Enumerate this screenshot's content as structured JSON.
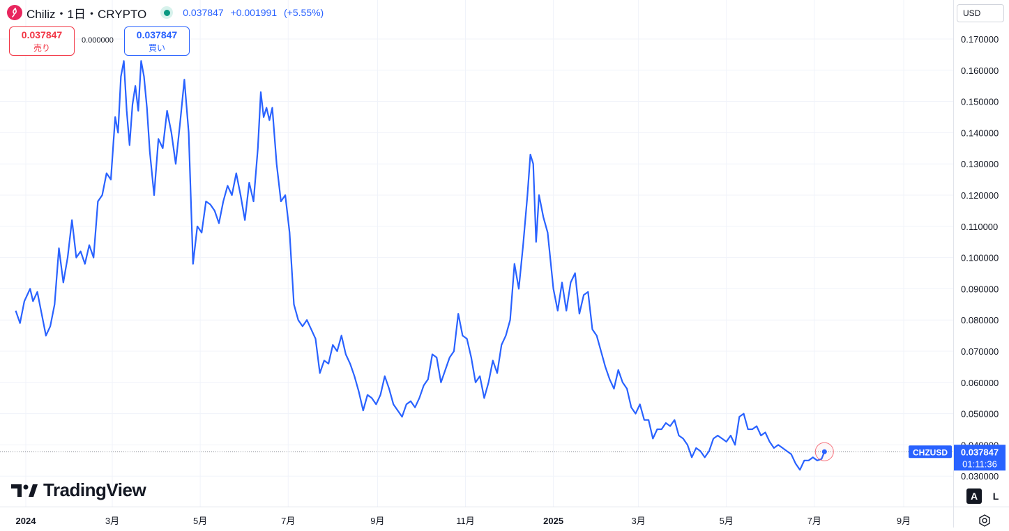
{
  "legend": {
    "symbol_title": "Chiliz・1日・CRYPTO",
    "last": "0.037847",
    "change": "+0.001991",
    "change_pct": "(+5.55%)"
  },
  "trade": {
    "sell_price": "0.037847",
    "sell_label": "売り",
    "spread": "0.000000",
    "buy_price": "0.037847",
    "buy_label": "買い"
  },
  "currency": "USD",
  "axis_buttons": {
    "auto": "A",
    "log": "L"
  },
  "logo_text": "TradingView",
  "price_label": {
    "symbol": "CHZUSD",
    "price": "0.037847",
    "countdown": "01:11:36"
  },
  "colors": {
    "line": "#2962ff",
    "grid": "#f0f3fa",
    "sell": "#f23645",
    "buy": "#2962ff"
  },
  "chart_data": {
    "type": "line",
    "x_unit": "date",
    "y_axis": {
      "min": 0.025,
      "max": 0.175,
      "ticks": [
        "0.030000",
        "0.040000",
        "0.050000",
        "0.060000",
        "0.070000",
        "0.080000",
        "0.090000",
        "0.100000",
        "0.110000",
        "0.120000",
        "0.130000",
        "0.140000",
        "0.150000",
        "0.160000",
        "0.170000"
      ]
    },
    "x_axis": {
      "ticks": [
        {
          "label": "2024",
          "date": "2024-01-01",
          "bold": true
        },
        {
          "label": "3月",
          "date": "2024-03-01"
        },
        {
          "label": "5月",
          "date": "2024-05-01"
        },
        {
          "label": "7月",
          "date": "2024-07-01"
        },
        {
          "label": "9月",
          "date": "2024-09-01"
        },
        {
          "label": "11月",
          "date": "2024-11-01"
        },
        {
          "label": "2025",
          "date": "2025-01-01",
          "bold": true
        },
        {
          "label": "3月",
          "date": "2025-03-01"
        },
        {
          "label": "5月",
          "date": "2025-05-01"
        },
        {
          "label": "7月",
          "date": "2025-07-01"
        },
        {
          "label": "9月",
          "date": "2025-09-01"
        }
      ]
    },
    "series": [
      {
        "points": [
          [
            "2023-12-25",
            0.083
          ],
          [
            "2023-12-28",
            0.079
          ],
          [
            "2023-12-31",
            0.086
          ],
          [
            "2024-01-04",
            0.09
          ],
          [
            "2024-01-06",
            0.086
          ],
          [
            "2024-01-09",
            0.089
          ],
          [
            "2024-01-12",
            0.082
          ],
          [
            "2024-01-15",
            0.075
          ],
          [
            "2024-01-18",
            0.078
          ],
          [
            "2024-01-21",
            0.085
          ],
          [
            "2024-01-24",
            0.103
          ],
          [
            "2024-01-27",
            0.092
          ],
          [
            "2024-01-30",
            0.1
          ],
          [
            "2024-02-02",
            0.112
          ],
          [
            "2024-02-05",
            0.1
          ],
          [
            "2024-02-08",
            0.102
          ],
          [
            "2024-02-11",
            0.098
          ],
          [
            "2024-02-14",
            0.104
          ],
          [
            "2024-02-17",
            0.1
          ],
          [
            "2024-02-20",
            0.118
          ],
          [
            "2024-02-23",
            0.12
          ],
          [
            "2024-02-26",
            0.127
          ],
          [
            "2024-02-29",
            0.125
          ],
          [
            "2024-03-03",
            0.145
          ],
          [
            "2024-03-05",
            0.14
          ],
          [
            "2024-03-07",
            0.158
          ],
          [
            "2024-03-09",
            0.163
          ],
          [
            "2024-03-11",
            0.147
          ],
          [
            "2024-03-13",
            0.136
          ],
          [
            "2024-03-15",
            0.149
          ],
          [
            "2024-03-17",
            0.155
          ],
          [
            "2024-03-19",
            0.147
          ],
          [
            "2024-03-21",
            0.163
          ],
          [
            "2024-03-23",
            0.158
          ],
          [
            "2024-03-25",
            0.148
          ],
          [
            "2024-03-27",
            0.134
          ],
          [
            "2024-03-30",
            0.12
          ],
          [
            "2024-04-02",
            0.138
          ],
          [
            "2024-04-05",
            0.135
          ],
          [
            "2024-04-08",
            0.147
          ],
          [
            "2024-04-11",
            0.14
          ],
          [
            "2024-04-14",
            0.13
          ],
          [
            "2024-04-17",
            0.143
          ],
          [
            "2024-04-20",
            0.157
          ],
          [
            "2024-04-23",
            0.14
          ],
          [
            "2024-04-26",
            0.098
          ],
          [
            "2024-04-29",
            0.11
          ],
          [
            "2024-05-02",
            0.108
          ],
          [
            "2024-05-05",
            0.118
          ],
          [
            "2024-05-08",
            0.117
          ],
          [
            "2024-05-11",
            0.115
          ],
          [
            "2024-05-14",
            0.111
          ],
          [
            "2024-05-17",
            0.118
          ],
          [
            "2024-05-20",
            0.123
          ],
          [
            "2024-05-23",
            0.12
          ],
          [
            "2024-05-26",
            0.127
          ],
          [
            "2024-05-29",
            0.12
          ],
          [
            "2024-06-01",
            0.112
          ],
          [
            "2024-06-04",
            0.124
          ],
          [
            "2024-06-07",
            0.118
          ],
          [
            "2024-06-10",
            0.135
          ],
          [
            "2024-06-12",
            0.153
          ],
          [
            "2024-06-14",
            0.145
          ],
          [
            "2024-06-16",
            0.148
          ],
          [
            "2024-06-18",
            0.144
          ],
          [
            "2024-06-20",
            0.148
          ],
          [
            "2024-06-23",
            0.13
          ],
          [
            "2024-06-26",
            0.118
          ],
          [
            "2024-06-29",
            0.12
          ],
          [
            "2024-07-02",
            0.108
          ],
          [
            "2024-07-05",
            0.085
          ],
          [
            "2024-07-08",
            0.08
          ],
          [
            "2024-07-11",
            0.078
          ],
          [
            "2024-07-14",
            0.08
          ],
          [
            "2024-07-17",
            0.077
          ],
          [
            "2024-07-20",
            0.074
          ],
          [
            "2024-07-23",
            0.063
          ],
          [
            "2024-07-26",
            0.067
          ],
          [
            "2024-07-29",
            0.066
          ],
          [
            "2024-08-01",
            0.072
          ],
          [
            "2024-08-04",
            0.07
          ],
          [
            "2024-08-07",
            0.075
          ],
          [
            "2024-08-10",
            0.069
          ],
          [
            "2024-08-13",
            0.066
          ],
          [
            "2024-08-16",
            0.062
          ],
          [
            "2024-08-19",
            0.057
          ],
          [
            "2024-08-22",
            0.051
          ],
          [
            "2024-08-25",
            0.056
          ],
          [
            "2024-08-28",
            0.055
          ],
          [
            "2024-08-31",
            0.053
          ],
          [
            "2024-09-03",
            0.056
          ],
          [
            "2024-09-06",
            0.062
          ],
          [
            "2024-09-09",
            0.058
          ],
          [
            "2024-09-12",
            0.053
          ],
          [
            "2024-09-15",
            0.051
          ],
          [
            "2024-09-18",
            0.049
          ],
          [
            "2024-09-21",
            0.053
          ],
          [
            "2024-09-24",
            0.054
          ],
          [
            "2024-09-27",
            0.052
          ],
          [
            "2024-09-30",
            0.055
          ],
          [
            "2024-10-03",
            0.059
          ],
          [
            "2024-10-06",
            0.061
          ],
          [
            "2024-10-09",
            0.069
          ],
          [
            "2024-10-12",
            0.068
          ],
          [
            "2024-10-15",
            0.06
          ],
          [
            "2024-10-18",
            0.064
          ],
          [
            "2024-10-21",
            0.068
          ],
          [
            "2024-10-24",
            0.07
          ],
          [
            "2024-10-27",
            0.082
          ],
          [
            "2024-10-30",
            0.075
          ],
          [
            "2024-11-02",
            0.074
          ],
          [
            "2024-11-05",
            0.068
          ],
          [
            "2024-11-08",
            0.06
          ],
          [
            "2024-11-11",
            0.062
          ],
          [
            "2024-11-14",
            0.055
          ],
          [
            "2024-11-17",
            0.06
          ],
          [
            "2024-11-20",
            0.067
          ],
          [
            "2024-11-23",
            0.063
          ],
          [
            "2024-11-26",
            0.072
          ],
          [
            "2024-11-29",
            0.075
          ],
          [
            "2024-12-02",
            0.08
          ],
          [
            "2024-12-05",
            0.098
          ],
          [
            "2024-12-08",
            0.09
          ],
          [
            "2024-12-11",
            0.104
          ],
          [
            "2024-12-14",
            0.12
          ],
          [
            "2024-12-16",
            0.133
          ],
          [
            "2024-12-18",
            0.13
          ],
          [
            "2024-12-20",
            0.105
          ],
          [
            "2024-12-22",
            0.12
          ],
          [
            "2024-12-25",
            0.113
          ],
          [
            "2024-12-28",
            0.108
          ],
          [
            "2025-01-01",
            0.09
          ],
          [
            "2025-01-04",
            0.083
          ],
          [
            "2025-01-07",
            0.092
          ],
          [
            "2025-01-10",
            0.083
          ],
          [
            "2025-01-13",
            0.092
          ],
          [
            "2025-01-16",
            0.095
          ],
          [
            "2025-01-19",
            0.082
          ],
          [
            "2025-01-22",
            0.088
          ],
          [
            "2025-01-25",
            0.089
          ],
          [
            "2025-01-28",
            0.077
          ],
          [
            "2025-01-31",
            0.075
          ],
          [
            "2025-02-03",
            0.07
          ],
          [
            "2025-02-06",
            0.065
          ],
          [
            "2025-02-09",
            0.061
          ],
          [
            "2025-02-12",
            0.058
          ],
          [
            "2025-02-15",
            0.064
          ],
          [
            "2025-02-18",
            0.06
          ],
          [
            "2025-02-21",
            0.058
          ],
          [
            "2025-02-24",
            0.052
          ],
          [
            "2025-02-27",
            0.05
          ],
          [
            "2025-03-02",
            0.053
          ],
          [
            "2025-03-05",
            0.048
          ],
          [
            "2025-03-08",
            0.048
          ],
          [
            "2025-03-11",
            0.042
          ],
          [
            "2025-03-14",
            0.045
          ],
          [
            "2025-03-17",
            0.045
          ],
          [
            "2025-03-20",
            0.047
          ],
          [
            "2025-03-23",
            0.046
          ],
          [
            "2025-03-26",
            0.048
          ],
          [
            "2025-03-29",
            0.043
          ],
          [
            "2025-04-01",
            0.042
          ],
          [
            "2025-04-04",
            0.04
          ],
          [
            "2025-04-07",
            0.036
          ],
          [
            "2025-04-10",
            0.039
          ],
          [
            "2025-04-13",
            0.038
          ],
          [
            "2025-04-16",
            0.036
          ],
          [
            "2025-04-19",
            0.038
          ],
          [
            "2025-04-22",
            0.042
          ],
          [
            "2025-04-25",
            0.043
          ],
          [
            "2025-04-28",
            0.042
          ],
          [
            "2025-05-01",
            0.041
          ],
          [
            "2025-05-04",
            0.043
          ],
          [
            "2025-05-07",
            0.04
          ],
          [
            "2025-05-10",
            0.049
          ],
          [
            "2025-05-13",
            0.05
          ],
          [
            "2025-05-16",
            0.045
          ],
          [
            "2025-05-19",
            0.045
          ],
          [
            "2025-05-22",
            0.046
          ],
          [
            "2025-05-25",
            0.043
          ],
          [
            "2025-05-28",
            0.044
          ],
          [
            "2025-05-31",
            0.041
          ],
          [
            "2025-06-03",
            0.039
          ],
          [
            "2025-06-06",
            0.04
          ],
          [
            "2025-06-09",
            0.039
          ],
          [
            "2025-06-12",
            0.038
          ],
          [
            "2025-06-15",
            0.037
          ],
          [
            "2025-06-18",
            0.034
          ],
          [
            "2025-06-21",
            0.032
          ],
          [
            "2025-06-24",
            0.035
          ],
          [
            "2025-06-27",
            0.035
          ],
          [
            "2025-06-30",
            0.036
          ],
          [
            "2025-07-03",
            0.035
          ],
          [
            "2025-07-06",
            0.0355
          ],
          [
            "2025-07-08",
            0.0378
          ]
        ]
      }
    ]
  }
}
